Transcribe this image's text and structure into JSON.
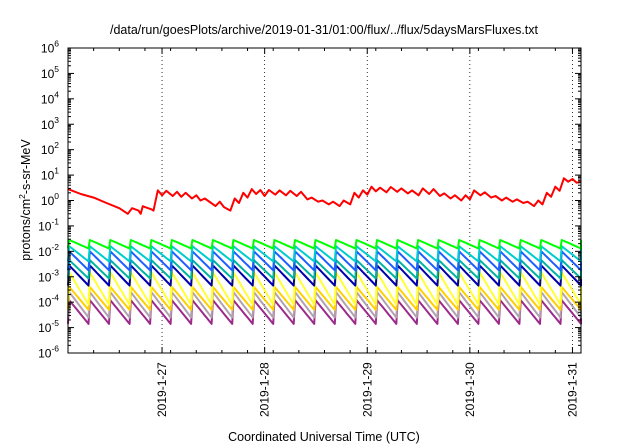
{
  "chart_data": {
    "type": "line",
    "title": "/data/run/goesPlots/archive/2019-01-31/01:00/flux/../flux/5daysMarsFluxes.txt",
    "xlabel": "Coordinated Universal Time (UTC)",
    "ylabel_main": "protons/cm",
    "ylabel_sup": "2",
    "ylabel_tail": "-s-sr-MeV",
    "x_start": "2019-01-26T02:00",
    "x_end": "2019-01-31T02:00",
    "xticks": [
      {
        "date": "2019-01-27T00:00",
        "label": "2019-1-27"
      },
      {
        "date": "2019-01-28T00:00",
        "label": "2019-1-28"
      },
      {
        "date": "2019-01-29T00:00",
        "label": "2019-1-29"
      },
      {
        "date": "2019-01-30T00:00",
        "label": "2019-1-30"
      },
      {
        "date": "2019-01-31T00:00",
        "label": "2019-1-31"
      }
    ],
    "y_scale": "log",
    "ylim": [
      1e-06,
      1000000.0
    ],
    "yticks": [
      {
        "base": "10",
        "exp": "6"
      },
      {
        "base": "10",
        "exp": "5"
      },
      {
        "base": "10",
        "exp": "4"
      },
      {
        "base": "10",
        "exp": "3"
      },
      {
        "base": "10",
        "exp": "2"
      },
      {
        "base": "10",
        "exp": "1"
      },
      {
        "base": "10",
        "exp": "0"
      },
      {
        "base": "10",
        "exp": "-1"
      },
      {
        "base": "10",
        "exp": "-2"
      },
      {
        "base": "10",
        "exp": "-3"
      },
      {
        "base": "10",
        "exp": "-4"
      },
      {
        "base": "10",
        "exp": "-5"
      },
      {
        "base": "10",
        "exp": "-6"
      }
    ],
    "grid": "vertical dotted at day ticks",
    "series": [
      {
        "color": "#ff0000",
        "x": [
          "2019-01-26T02:00",
          "2019-01-26T05:00",
          "2019-01-26T08:00",
          "2019-01-26T11:00",
          "2019-01-26T14:00",
          "2019-01-26T16:00",
          "2019-01-26T17:00",
          "2019-01-26T18:30",
          "2019-01-26T19:00",
          "2019-01-26T19:30",
          "2019-01-26T20:00",
          "2019-01-26T21:30",
          "2019-01-26T22:00",
          "2019-01-26T23:00",
          "2019-01-27T00:00",
          "2019-01-27T01:00",
          "2019-01-27T02:30",
          "2019-01-27T03:30",
          "2019-01-27T04:30",
          "2019-01-27T05:30",
          "2019-01-27T07:00",
          "2019-01-27T08:00",
          "2019-01-27T09:00",
          "2019-01-27T10:00",
          "2019-01-27T11:30",
          "2019-01-27T12:30",
          "2019-01-27T13:30",
          "2019-01-27T14:30",
          "2019-01-27T16:00",
          "2019-01-27T17:00",
          "2019-01-27T18:00",
          "2019-01-27T19:00",
          "2019-01-27T20:00",
          "2019-01-27T21:00",
          "2019-01-27T22:00",
          "2019-01-27T23:00",
          "2019-01-28T00:00",
          "2019-01-28T01:00",
          "2019-01-28T02:30",
          "2019-01-28T03:30",
          "2019-01-28T05:00",
          "2019-01-28T06:00",
          "2019-01-28T07:30",
          "2019-01-28T08:30",
          "2019-01-28T10:00",
          "2019-01-28T11:00",
          "2019-01-28T12:30",
          "2019-01-28T13:30",
          "2019-01-28T15:00",
          "2019-01-28T16:00",
          "2019-01-28T17:30",
          "2019-01-28T18:30",
          "2019-01-28T20:00",
          "2019-01-28T21:00",
          "2019-01-28T22:00",
          "2019-01-28T23:00",
          "2019-01-29T00:00",
          "2019-01-29T01:00",
          "2019-01-29T02:00",
          "2019-01-29T03:00",
          "2019-01-29T04:30",
          "2019-01-29T05:30",
          "2019-01-29T07:00",
          "2019-01-29T08:00",
          "2019-01-29T09:30",
          "2019-01-29T10:30",
          "2019-01-29T12:00",
          "2019-01-29T13:00",
          "2019-01-29T14:30",
          "2019-01-29T15:30",
          "2019-01-29T17:00",
          "2019-01-29T18:00",
          "2019-01-29T19:30",
          "2019-01-29T20:30",
          "2019-01-29T22:00",
          "2019-01-29T23:00",
          "2019-01-30T00:00",
          "2019-01-30T01:00",
          "2019-01-30T02:30",
          "2019-01-30T03:30",
          "2019-01-30T05:00",
          "2019-01-30T06:00",
          "2019-01-30T07:30",
          "2019-01-30T08:30",
          "2019-01-30T10:00",
          "2019-01-30T11:00",
          "2019-01-30T12:30",
          "2019-01-30T13:30",
          "2019-01-30T15:00",
          "2019-01-30T16:00",
          "2019-01-30T17:00",
          "2019-01-30T18:00",
          "2019-01-30T19:00",
          "2019-01-30T20:00",
          "2019-01-30T21:00",
          "2019-01-30T22:00",
          "2019-01-30T23:00",
          "2019-01-31T00:00",
          "2019-01-31T01:00",
          "2019-01-31T02:00"
        ],
        "y": [
          2.8,
          1.8,
          1.3,
          0.8,
          0.5,
          0.3,
          0.5,
          0.4,
          0.3,
          0.6,
          0.55,
          0.45,
          0.4,
          2.5,
          1.6,
          2.4,
          1.5,
          2.2,
          1.4,
          2.0,
          1.2,
          1.6,
          1.0,
          1.2,
          0.8,
          0.6,
          0.9,
          0.55,
          0.4,
          1.2,
          0.8,
          2.0,
          1.3,
          2.8,
          1.8,
          2.6,
          1.5,
          2.6,
          1.7,
          2.5,
          1.6,
          2.4,
          1.5,
          2.2,
          1.1,
          1.3,
          0.9,
          1.0,
          0.7,
          0.9,
          0.6,
          1.0,
          0.7,
          2.0,
          1.3,
          2.5,
          1.7,
          3.5,
          2.3,
          3.2,
          2.1,
          3.4,
          2.2,
          3.0,
          1.9,
          2.5,
          1.6,
          3.0,
          1.8,
          2.8,
          1.5,
          1.9,
          1.2,
          1.6,
          1.0,
          1.6,
          1.1,
          2.5,
          1.6,
          2.1,
          1.3,
          1.5,
          1.0,
          1.3,
          0.9,
          1.1,
          0.8,
          0.9,
          0.6,
          1.0,
          0.7,
          2.0,
          1.4,
          3.5,
          2.4,
          7.5,
          5.5,
          7.0,
          5.0,
          5.5
        ]
      },
      {
        "color": "#00ff00",
        "peak": 0.028,
        "trough": 0.013,
        "cycles": 25
      },
      {
        "color": "#00cccc",
        "peak": 0.016,
        "trough": 0.004,
        "cycles": 25
      },
      {
        "color": "#1f5fff",
        "peak": 0.01,
        "trough": 0.0018,
        "cycles": 25
      },
      {
        "color": "#00b4a0",
        "peak": 0.0045,
        "trough": 0.00085,
        "cycles": 25
      },
      {
        "color": "#0000aa",
        "peak": 0.0028,
        "trough": 0.00045,
        "cycles": 25
      },
      {
        "color": "#ffff33",
        "peak": 0.0015,
        "trough": 8e-05,
        "cycles": 25
      },
      {
        "color": "#ffd000",
        "peak": 0.0004,
        "trough": 5e-05,
        "cycles": 25
      },
      {
        "color": "#b0a0b0",
        "peak": 0.00025,
        "trough": 2.5e-05,
        "cycles": 25
      },
      {
        "color": "#9b2a8a",
        "peak": 0.00012,
        "trough": 1.4e-05,
        "cycles": 25
      }
    ]
  }
}
